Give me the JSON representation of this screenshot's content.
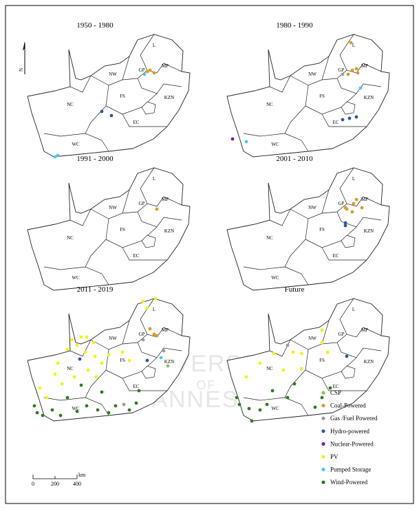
{
  "north": "N",
  "panels": [
    {
      "title": "1950 - 1980",
      "labels": [
        "L",
        "MP",
        "GP",
        "NW",
        "NC",
        "FS",
        "KZN",
        "EC",
        "WC"
      ]
    },
    {
      "title": "1980 - 1990",
      "labels": [
        "L",
        "MP",
        "GP",
        "NW",
        "NC",
        "FS",
        "KZN",
        "EC",
        "WC"
      ]
    },
    {
      "title": "1991 - 2000",
      "labels": [
        "L",
        "MP",
        "GP",
        "NW",
        "NC",
        "FS",
        "KZN",
        "EC",
        "WC"
      ]
    },
    {
      "title": "2001 - 2010",
      "labels": [
        "L",
        "MP",
        "GP",
        "NW",
        "NC",
        "FS",
        "KZN",
        "EC",
        "WC"
      ]
    },
    {
      "title": "2011 - 2019",
      "labels": [
        "L",
        "MP",
        "GP",
        "NW",
        "NC",
        "FS",
        "KZN",
        "EC",
        "WC"
      ]
    },
    {
      "title": "Future",
      "labels": [
        "L",
        "MP",
        "GP",
        "NW",
        "NC",
        "FS",
        "KZN",
        "EC",
        "WC"
      ]
    }
  ],
  "legend": [
    {
      "name": "CSP",
      "color": "#8fbf5f"
    },
    {
      "name": "Coal-Powered",
      "color": "#d99a2b"
    },
    {
      "name": "Gas /Fuel Powered",
      "color": "#9a9a9a"
    },
    {
      "name": "Hydro-powered",
      "color": "#2e55a4"
    },
    {
      "name": "Nuclear-Powered",
      "color": "#7b1fa2"
    },
    {
      "name": "PV",
      "color": "#f2f21a"
    },
    {
      "name": "Pumped Storage",
      "color": "#4fc3f7"
    },
    {
      "name": "Wind-Powered",
      "color": "#2e7d1f"
    }
  ],
  "scale": {
    "labels": [
      "0",
      "200",
      "400"
    ],
    "unit": "km"
  },
  "watermark": [
    "UNIVERSITY",
    "OF",
    "JOHANNESBURG"
  ]
}
